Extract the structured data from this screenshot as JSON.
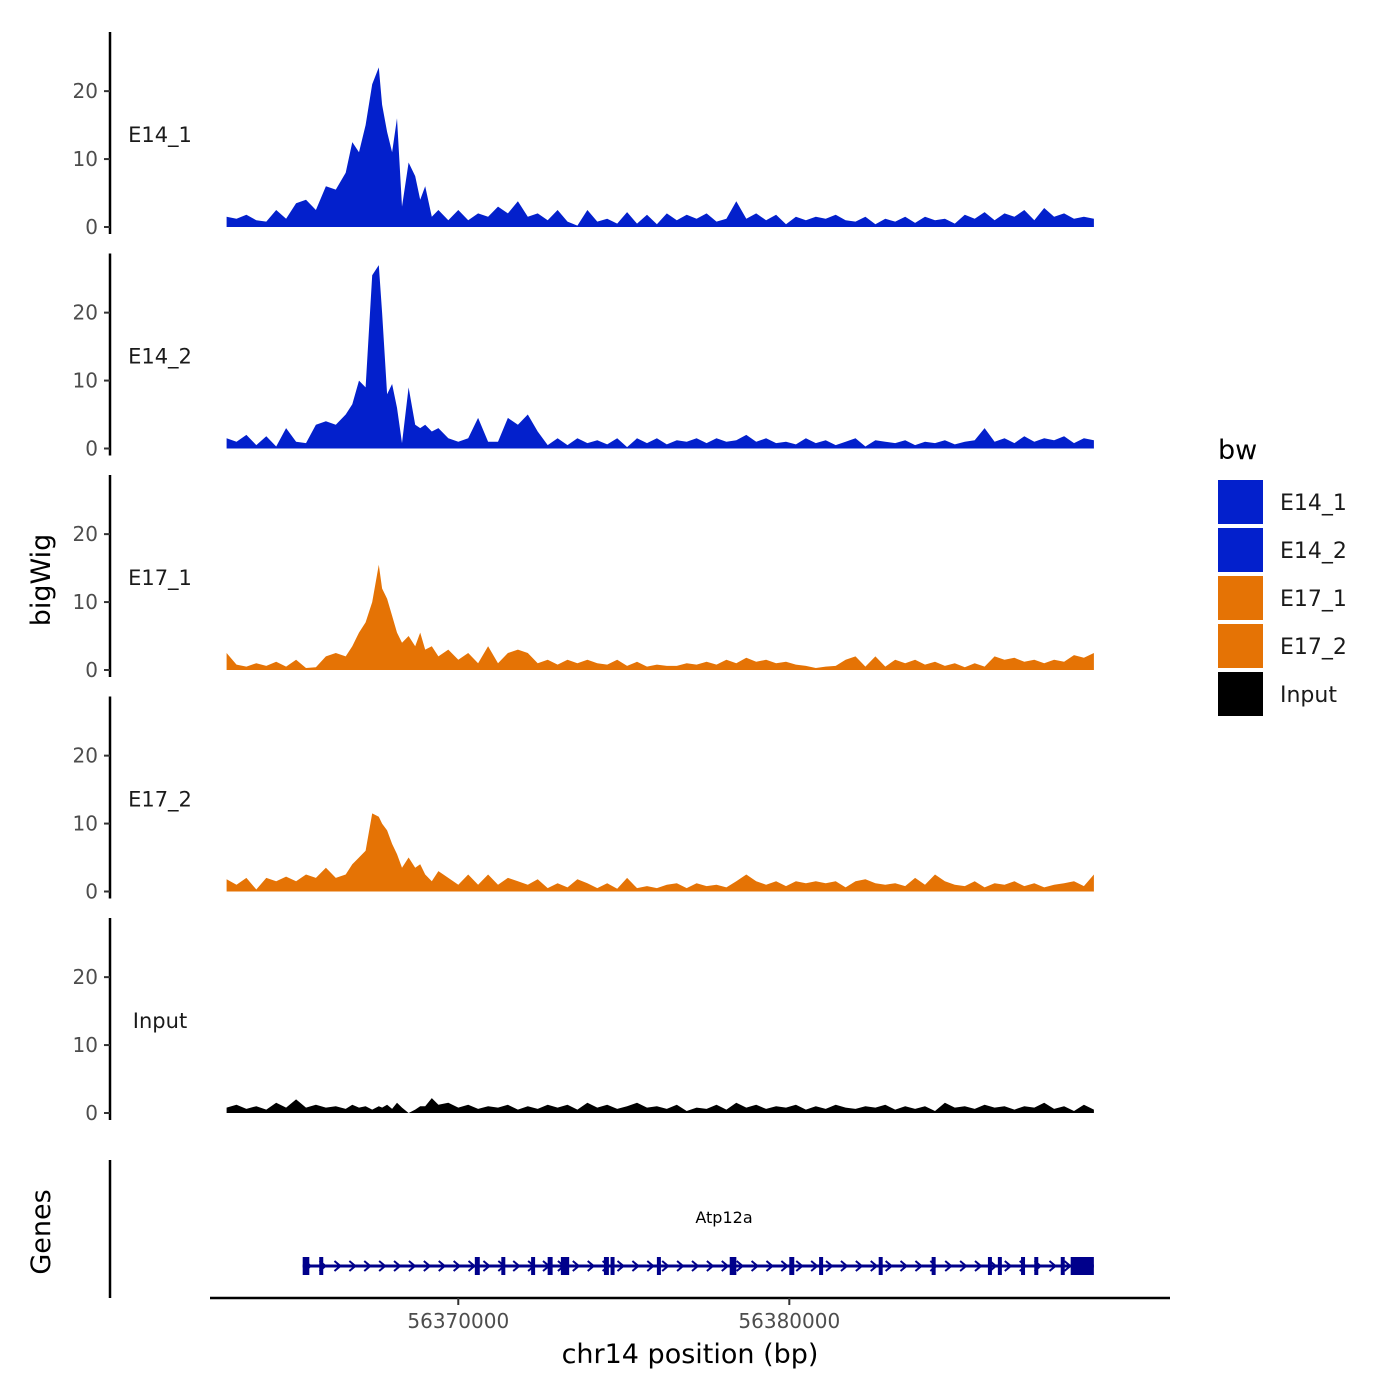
{
  "chart_data": {
    "type": "area",
    "ylabel": "bigWig",
    "xlabel": "chr14 position (bp)",
    "genes_label": "Genes",
    "xlim": [
      56362500,
      56391500
    ],
    "ylim": [
      0,
      29
    ],
    "x_ticks": [
      56370000,
      56380000
    ],
    "x_tick_labels": [
      "56370000",
      "56380000"
    ],
    "y_ticks": [
      0,
      10,
      20
    ],
    "y_tick_labels": [
      "0",
      "10",
      "20"
    ],
    "legend": {
      "title": "bw",
      "position": "right",
      "entries": [
        {
          "label": "E14_1",
          "color": "#0320cc"
        },
        {
          "label": "E14_2",
          "color": "#0320cc"
        },
        {
          "label": "E17_1",
          "color": "#e57305"
        },
        {
          "label": "E17_2",
          "color": "#e57305"
        },
        {
          "label": "Input",
          "color": "#000000"
        }
      ]
    },
    "series": [
      {
        "name": "E14_1",
        "color": "#0320cc",
        "x": [
          56363000,
          56363300,
          56363600,
          56363900,
          56364200,
          56364500,
          56364800,
          56365100,
          56365400,
          56365700,
          56366000,
          56366300,
          56366600,
          56366800,
          56367000,
          56367200,
          56367400,
          56367600,
          56367700,
          56367850,
          56368000,
          56368150,
          56368300,
          56368500,
          56368700,
          56368850,
          56369000,
          56369200,
          56369400,
          56369700,
          56370000,
          56370300,
          56370600,
          56370900,
          56371200,
          56371500,
          56371800,
          56372100,
          56372400,
          56372700,
          56373000,
          56373300,
          56373600,
          56373900,
          56374200,
          56374500,
          56374800,
          56375100,
          56375400,
          56375700,
          56376000,
          56376300,
          56376600,
          56376900,
          56377200,
          56377500,
          56377800,
          56378100,
          56378400,
          56378700,
          56379000,
          56379300,
          56379600,
          56379900,
          56380200,
          56380500,
          56380800,
          56381100,
          56381400,
          56381700,
          56382000,
          56382300,
          56382600,
          56382900,
          56383200,
          56383500,
          56383800,
          56384100,
          56384400,
          56384700,
          56385000,
          56385300,
          56385600,
          56385900,
          56386200,
          56386500,
          56386800,
          56387100,
          56387400,
          56387700,
          56388000,
          56388300,
          56388600,
          56388900,
          56389200
        ],
        "values": [
          1.5,
          1.2,
          1.8,
          1.0,
          0.8,
          2.5,
          1.2,
          3.5,
          4.0,
          2.5,
          6.0,
          5.5,
          8.0,
          12.5,
          11.0,
          15.0,
          21.0,
          23.5,
          18.0,
          14.0,
          11.0,
          16.0,
          3.0,
          9.5,
          7.5,
          4.0,
          6.0,
          1.5,
          2.5,
          1.0,
          2.5,
          1.0,
          2.0,
          1.5,
          3.0,
          2.0,
          3.8,
          1.5,
          2.0,
          1.0,
          2.5,
          0.8,
          0.2,
          2.5,
          0.8,
          1.2,
          0.5,
          2.2,
          0.5,
          1.8,
          0.4,
          2.0,
          1.0,
          1.8,
          1.2,
          2.0,
          0.8,
          1.2,
          3.8,
          1.2,
          2.0,
          1.0,
          1.8,
          0.4,
          1.5,
          1.0,
          1.5,
          1.2,
          1.8,
          1.0,
          0.8,
          1.5,
          0.4,
          1.2,
          0.8,
          1.5,
          0.6,
          1.5,
          1.0,
          1.2,
          0.5,
          1.8,
          1.2,
          2.2,
          1.0,
          2.0,
          1.5,
          2.5,
          1.0,
          2.8,
          1.5,
          2.0,
          1.2,
          1.5,
          1.2
        ]
      },
      {
        "name": "E14_2",
        "color": "#0320cc",
        "x": [
          56363000,
          56363300,
          56363600,
          56363900,
          56364200,
          56364500,
          56364800,
          56365100,
          56365400,
          56365700,
          56366000,
          56366300,
          56366600,
          56366800,
          56367000,
          56367200,
          56367400,
          56367600,
          56367700,
          56367850,
          56368000,
          56368150,
          56368300,
          56368500,
          56368700,
          56368850,
          56369000,
          56369200,
          56369400,
          56369700,
          56370000,
          56370300,
          56370600,
          56370900,
          56371200,
          56371500,
          56371800,
          56372100,
          56372400,
          56372700,
          56373000,
          56373300,
          56373600,
          56373900,
          56374200,
          56374500,
          56374800,
          56375100,
          56375400,
          56375700,
          56376000,
          56376300,
          56376600,
          56376900,
          56377200,
          56377500,
          56377800,
          56378100,
          56378400,
          56378700,
          56379000,
          56379300,
          56379600,
          56379900,
          56380200,
          56380500,
          56380800,
          56381100,
          56381400,
          56381700,
          56382000,
          56382300,
          56382600,
          56382900,
          56383200,
          56383500,
          56383800,
          56384100,
          56384400,
          56384700,
          56385000,
          56385300,
          56385600,
          56385900,
          56386200,
          56386500,
          56386800,
          56387100,
          56387400,
          56387700,
          56388000,
          56388300,
          56388600,
          56388900,
          56389200
        ],
        "values": [
          1.5,
          1.0,
          2.0,
          0.5,
          1.8,
          0.3,
          3.0,
          1.0,
          0.8,
          3.5,
          4.0,
          3.5,
          5.0,
          6.5,
          10.0,
          9.0,
          25.5,
          27.0,
          20.0,
          8.0,
          9.5,
          6.0,
          0.8,
          9.0,
          3.5,
          3.0,
          3.5,
          2.5,
          3.0,
          1.5,
          1.0,
          1.5,
          4.5,
          1.0,
          1.0,
          4.5,
          3.5,
          5.0,
          2.5,
          0.5,
          1.5,
          0.5,
          1.5,
          0.8,
          1.2,
          0.6,
          1.5,
          0.2,
          1.5,
          0.8,
          1.5,
          0.6,
          1.2,
          1.0,
          1.5,
          0.8,
          1.5,
          1.0,
          1.2,
          2.0,
          1.0,
          1.5,
          0.8,
          1.0,
          0.6,
          1.5,
          0.8,
          1.2,
          0.5,
          1.0,
          1.5,
          0.3,
          1.2,
          1.0,
          0.8,
          1.2,
          0.5,
          1.0,
          0.8,
          1.2,
          0.6,
          1.0,
          1.2,
          3.0,
          1.0,
          1.5,
          0.8,
          1.8,
          1.0,
          1.5,
          1.2,
          1.8,
          0.8,
          1.5,
          1.2
        ]
      },
      {
        "name": "E17_1",
        "color": "#e57305",
        "x": [
          56363000,
          56363300,
          56363600,
          56363900,
          56364200,
          56364500,
          56364800,
          56365100,
          56365400,
          56365700,
          56366000,
          56366300,
          56366600,
          56366800,
          56367000,
          56367200,
          56367400,
          56367600,
          56367700,
          56367850,
          56368000,
          56368150,
          56368300,
          56368500,
          56368700,
          56368850,
          56369000,
          56369200,
          56369400,
          56369700,
          56370000,
          56370300,
          56370600,
          56370900,
          56371200,
          56371500,
          56371800,
          56372100,
          56372400,
          56372700,
          56373000,
          56373300,
          56373600,
          56373900,
          56374200,
          56374500,
          56374800,
          56375100,
          56375400,
          56375700,
          56376000,
          56376300,
          56376600,
          56376900,
          56377200,
          56377500,
          56377800,
          56378100,
          56378400,
          56378700,
          56379000,
          56379300,
          56379600,
          56379900,
          56380200,
          56380500,
          56380800,
          56381100,
          56381400,
          56381700,
          56382000,
          56382300,
          56382600,
          56382900,
          56383200,
          56383500,
          56383800,
          56384100,
          56384400,
          56384700,
          56385000,
          56385300,
          56385600,
          56385900,
          56386200,
          56386500,
          56386800,
          56387100,
          56387400,
          56387700,
          56388000,
          56388300,
          56388600,
          56388900,
          56389200
        ],
        "values": [
          2.5,
          0.8,
          0.5,
          1.0,
          0.6,
          1.2,
          0.5,
          1.5,
          0.3,
          0.4,
          2.0,
          2.5,
          2.0,
          3.5,
          5.5,
          7.0,
          10.0,
          15.5,
          12.0,
          10.5,
          8.0,
          5.5,
          4.0,
          5.0,
          3.5,
          5.5,
          3.0,
          3.5,
          2.0,
          3.0,
          1.5,
          2.5,
          1.0,
          3.5,
          1.0,
          2.5,
          3.0,
          2.5,
          1.0,
          1.5,
          0.8,
          1.5,
          1.0,
          1.5,
          1.0,
          0.8,
          1.5,
          0.6,
          1.2,
          0.5,
          0.8,
          0.6,
          0.6,
          1.0,
          0.8,
          1.2,
          0.8,
          1.5,
          1.0,
          1.8,
          1.2,
          1.5,
          1.0,
          1.2,
          0.8,
          0.6,
          0.3,
          0.5,
          0.6,
          1.5,
          2.0,
          0.5,
          2.0,
          0.5,
          1.5,
          1.0,
          1.5,
          0.8,
          1.2,
          0.6,
          1.0,
          0.4,
          1.0,
          0.5,
          2.0,
          1.5,
          1.8,
          1.2,
          1.5,
          1.0,
          1.5,
          1.2,
          2.2,
          1.8,
          2.5
        ]
      },
      {
        "name": "E17_2",
        "color": "#e57305",
        "x": [
          56363000,
          56363300,
          56363600,
          56363900,
          56364200,
          56364500,
          56364800,
          56365100,
          56365400,
          56365700,
          56366000,
          56366300,
          56366600,
          56366800,
          56367000,
          56367200,
          56367400,
          56367600,
          56367700,
          56367850,
          56368000,
          56368150,
          56368300,
          56368500,
          56368700,
          56368850,
          56369000,
          56369200,
          56369400,
          56369700,
          56370000,
          56370300,
          56370600,
          56370900,
          56371200,
          56371500,
          56371800,
          56372100,
          56372400,
          56372700,
          56373000,
          56373300,
          56373600,
          56373900,
          56374200,
          56374500,
          56374800,
          56375100,
          56375400,
          56375700,
          56376000,
          56376300,
          56376600,
          56376900,
          56377200,
          56377500,
          56377800,
          56378100,
          56378400,
          56378700,
          56379000,
          56379300,
          56379600,
          56379900,
          56380200,
          56380500,
          56380800,
          56381100,
          56381400,
          56381700,
          56382000,
          56382300,
          56382600,
          56382900,
          56383200,
          56383500,
          56383800,
          56384100,
          56384400,
          56384700,
          56385000,
          56385300,
          56385600,
          56385900,
          56386200,
          56386500,
          56386800,
          56387100,
          56387400,
          56387700,
          56388000,
          56388300,
          56388600,
          56388900,
          56389200
        ],
        "values": [
          1.8,
          1.0,
          2.0,
          0.3,
          2.0,
          1.5,
          2.2,
          1.5,
          2.5,
          2.0,
          3.5,
          2.0,
          2.5,
          4.0,
          5.0,
          6.0,
          11.5,
          11.0,
          10.0,
          9.0,
          7.0,
          5.5,
          3.5,
          5.0,
          3.5,
          4.0,
          2.5,
          1.5,
          3.0,
          2.0,
          1.0,
          2.5,
          1.0,
          2.5,
          1.0,
          2.0,
          1.5,
          1.0,
          1.8,
          0.5,
          1.2,
          0.6,
          1.8,
          1.2,
          0.5,
          1.2,
          0.4,
          2.0,
          0.5,
          0.8,
          0.5,
          1.0,
          1.2,
          0.5,
          1.2,
          0.8,
          1.0,
          0.6,
          1.5,
          2.5,
          1.5,
          1.0,
          1.5,
          0.8,
          1.5,
          1.2,
          1.5,
          1.2,
          1.5,
          0.6,
          1.5,
          1.8,
          1.2,
          1.0,
          1.2,
          0.8,
          2.0,
          1.0,
          2.5,
          1.5,
          1.0,
          0.8,
          1.5,
          0.6,
          1.2,
          1.0,
          1.5,
          0.8,
          1.2,
          0.6,
          1.0,
          1.2,
          1.5,
          0.8,
          2.5
        ]
      },
      {
        "name": "Input",
        "color": "#000000",
        "x": [
          56363000,
          56363300,
          56363600,
          56363900,
          56364200,
          56364500,
          56364800,
          56365100,
          56365400,
          56365700,
          56366000,
          56366300,
          56366600,
          56366800,
          56367000,
          56367200,
          56367400,
          56367600,
          56367700,
          56367850,
          56368000,
          56368150,
          56368300,
          56368500,
          56368700,
          56368850,
          56369000,
          56369200,
          56369400,
          56369700,
          56370000,
          56370300,
          56370600,
          56370900,
          56371200,
          56371500,
          56371800,
          56372100,
          56372400,
          56372700,
          56373000,
          56373300,
          56373600,
          56373900,
          56374200,
          56374500,
          56374800,
          56375100,
          56375400,
          56375700,
          56376000,
          56376300,
          56376600,
          56376900,
          56377200,
          56377500,
          56377800,
          56378100,
          56378400,
          56378700,
          56379000,
          56379300,
          56379600,
          56379900,
          56380200,
          56380500,
          56380800,
          56381100,
          56381400,
          56381700,
          56382000,
          56382300,
          56382600,
          56382900,
          56383200,
          56383500,
          56383800,
          56384100,
          56384400,
          56384700,
          56385000,
          56385300,
          56385600,
          56385900,
          56386200,
          56386500,
          56386800,
          56387100,
          56387400,
          56387700,
          56388000,
          56388300,
          56388600,
          56388900,
          56389200
        ],
        "values": [
          0.8,
          1.2,
          0.6,
          1.0,
          0.5,
          1.5,
          0.8,
          2.0,
          0.8,
          1.2,
          0.8,
          1.0,
          0.6,
          1.2,
          0.8,
          1.0,
          0.5,
          1.0,
          0.8,
          1.2,
          0.6,
          1.5,
          0.8,
          0.0,
          0.5,
          1.0,
          1.0,
          2.2,
          1.2,
          1.5,
          0.8,
          1.2,
          0.6,
          1.0,
          0.8,
          1.2,
          0.5,
          1.0,
          0.6,
          1.2,
          0.8,
          1.2,
          0.5,
          1.5,
          0.8,
          1.2,
          0.6,
          1.0,
          1.5,
          0.8,
          1.0,
          0.6,
          1.2,
          0.3,
          0.8,
          0.6,
          1.2,
          0.5,
          1.5,
          0.8,
          1.2,
          0.6,
          1.0,
          0.8,
          1.2,
          0.5,
          1.0,
          0.6,
          1.2,
          0.8,
          0.6,
          1.0,
          0.8,
          1.2,
          0.5,
          1.0,
          0.6,
          1.0,
          0.3,
          1.5,
          0.8,
          1.0,
          0.6,
          1.2,
          0.8,
          1.0,
          0.5,
          1.0,
          0.8,
          1.5,
          0.6,
          1.0,
          0.3,
          1.2,
          0.5
        ]
      }
    ],
    "gene": {
      "name": "Atp12a",
      "strand": "+",
      "start": 56365300,
      "end": 56389200,
      "color": "#00008b",
      "exon_starts": [
        56365300,
        56365800,
        56370500,
        56371300,
        56372200,
        56372700,
        56373100,
        56374400,
        56374600,
        56376000,
        56378200,
        56380000,
        56380900,
        56382700,
        56384300,
        56386000,
        56386300,
        56387000,
        56387400,
        56388200,
        56388500
      ],
      "exon_ends": [
        56365500,
        56365900,
        56370650,
        56371400,
        56372300,
        56372850,
        56373350,
        56374550,
        56374700,
        56376100,
        56378400,
        56380150,
        56381000,
        56382800,
        56384400,
        56386100,
        56386400,
        56387100,
        56387500,
        56388300,
        56389200
      ]
    }
  }
}
